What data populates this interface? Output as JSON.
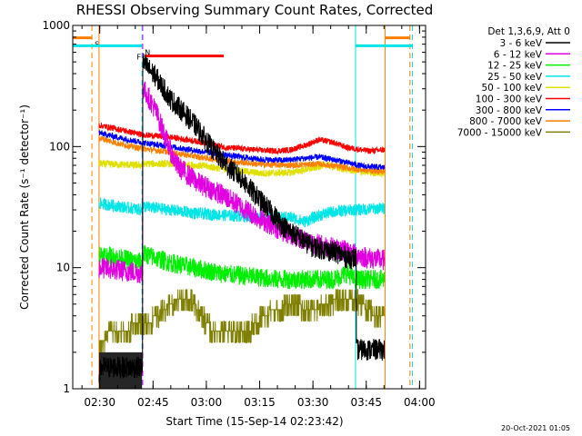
{
  "chart_data": {
    "type": "line",
    "title": "RHESSI Observing Summary Count Rates, Corrected",
    "xlabel": "Start Time (15-Sep-14 02:23:42)",
    "ylabel": "Corrected Count Rate (s⁻¹ detector⁻¹)",
    "footer_date": "20-Oct-2021 01:05",
    "x_unit": "minutes after 02:23:42",
    "xlim": [
      -1.3,
      98.0
    ],
    "ylim": [
      1,
      1000
    ],
    "y_scale": "log",
    "x_ticks": [
      {
        "label": "02:30",
        "t": 6.3
      },
      {
        "label": "02:45",
        "t": 21.3
      },
      {
        "label": "03:00",
        "t": 36.3
      },
      {
        "label": "03:15",
        "t": 51.3
      },
      {
        "label": "03:30",
        "t": 66.3
      },
      {
        "label": "03:45",
        "t": 81.3
      },
      {
        "label": "04:00",
        "t": 96.3
      }
    ],
    "y_ticks": [
      {
        "label": "1",
        "v": 1
      },
      {
        "label": "10",
        "v": 10
      },
      {
        "label": "100",
        "v": 100
      },
      {
        "label": "1000",
        "v": 1000
      }
    ],
    "legend_header": "Det 1,3,6,9, Att 0",
    "series": [
      {
        "name": "3 - 6 keV",
        "color": "#000000",
        "noise": 0.18,
        "points": [
          [
            6.1,
            1.3
          ],
          [
            6.7,
            1.5
          ],
          [
            12.5,
            1.5
          ],
          [
            18.2,
            1.5
          ],
          [
            18.6,
            490
          ],
          [
            22,
            380
          ],
          [
            26,
            250
          ],
          [
            30,
            190
          ],
          [
            34,
            140
          ],
          [
            38,
            95
          ],
          [
            42,
            70
          ],
          [
            46,
            55
          ],
          [
            50,
            40
          ],
          [
            54,
            30
          ],
          [
            58,
            22
          ],
          [
            62,
            18
          ],
          [
            66,
            15
          ],
          [
            70,
            14
          ],
          [
            74,
            13
          ],
          [
            76,
            12
          ],
          [
            78.3,
            12
          ],
          [
            78.7,
            2.1
          ],
          [
            86.5,
            2.1
          ]
        ]
      },
      {
        "name": "6 - 12 keV",
        "color": "#e000e0",
        "noise": 0.18,
        "points": [
          [
            6.1,
            10
          ],
          [
            12,
            9.5
          ],
          [
            18.2,
            9
          ],
          [
            18.6,
            300
          ],
          [
            22,
            200
          ],
          [
            26,
            95
          ],
          [
            28,
            70
          ],
          [
            30,
            62
          ],
          [
            34,
            50
          ],
          [
            38,
            44
          ],
          [
            42,
            38
          ],
          [
            46,
            32
          ],
          [
            50,
            27
          ],
          [
            54,
            23
          ],
          [
            58,
            20
          ],
          [
            62,
            18
          ],
          [
            66,
            16
          ],
          [
            70,
            15
          ],
          [
            74,
            14
          ],
          [
            78,
            13
          ],
          [
            82,
            12
          ],
          [
            86.5,
            11.5
          ]
        ]
      },
      {
        "name": "12 - 25 keV",
        "color": "#00ee00",
        "noise": 0.16,
        "points": [
          [
            6.1,
            13
          ],
          [
            18.2,
            11
          ],
          [
            18.6,
            13
          ],
          [
            26,
            11
          ],
          [
            40,
            9
          ],
          [
            56,
            8
          ],
          [
            66,
            8
          ],
          [
            72,
            8
          ],
          [
            76,
            9
          ],
          [
            78,
            8
          ],
          [
            86.5,
            8
          ]
        ]
      },
      {
        "name": "25 - 50 keV",
        "color": "#00e5e5",
        "noise": 0.1,
        "points": [
          [
            6.1,
            34
          ],
          [
            18.2,
            30
          ],
          [
            18.6,
            32
          ],
          [
            26,
            30
          ],
          [
            34,
            28
          ],
          [
            42,
            27
          ],
          [
            52,
            26
          ],
          [
            60,
            26
          ],
          [
            64,
            24
          ],
          [
            68,
            27
          ],
          [
            72,
            29
          ],
          [
            78,
            30
          ],
          [
            86.5,
            31
          ]
        ]
      },
      {
        "name": "50 - 100 keV",
        "color": "#e0e000",
        "noise": 0.06,
        "points": [
          [
            6.1,
            72
          ],
          [
            18.2,
            70
          ],
          [
            18.6,
            72
          ],
          [
            26,
            72
          ],
          [
            34,
            70
          ],
          [
            42,
            65
          ],
          [
            52,
            60
          ],
          [
            60,
            61
          ],
          [
            66,
            66
          ],
          [
            70,
            71
          ],
          [
            74,
            66
          ],
          [
            80,
            62
          ],
          [
            86.5,
            60
          ]
        ]
      },
      {
        "name": "100 - 300 keV",
        "color": "#ff0000",
        "noise": 0.05,
        "points": [
          [
            6.1,
            150
          ],
          [
            12,
            138
          ],
          [
            18.2,
            125
          ],
          [
            26,
            120
          ],
          [
            34,
            110
          ],
          [
            42,
            98
          ],
          [
            52,
            93
          ],
          [
            56,
            92
          ],
          [
            60,
            94
          ],
          [
            64,
            102
          ],
          [
            68,
            114
          ],
          [
            72,
            108
          ],
          [
            76,
            98
          ],
          [
            82,
            92
          ],
          [
            86.5,
            94
          ]
        ]
      },
      {
        "name": "300 - 800 keV",
        "color": "#0000ff",
        "noise": 0.05,
        "points": [
          [
            6.1,
            130
          ],
          [
            12,
            118
          ],
          [
            18.2,
            108
          ],
          [
            26,
            100
          ],
          [
            34,
            92
          ],
          [
            42,
            85
          ],
          [
            52,
            78
          ],
          [
            58,
            77
          ],
          [
            64,
            80
          ],
          [
            68,
            82
          ],
          [
            74,
            76
          ],
          [
            80,
            69
          ],
          [
            86.5,
            67
          ]
        ]
      },
      {
        "name": "800 - 7000 keV",
        "color": "#ff8000",
        "noise": 0.05,
        "points": [
          [
            6.1,
            118
          ],
          [
            12,
            105
          ],
          [
            18.2,
            96
          ],
          [
            26,
            90
          ],
          [
            34,
            82
          ],
          [
            42,
            76
          ],
          [
            52,
            71
          ],
          [
            60,
            70
          ],
          [
            68,
            72
          ],
          [
            74,
            68
          ],
          [
            80,
            64
          ],
          [
            86.5,
            62
          ]
        ]
      },
      {
        "name": "7000 - 15000 keV",
        "color": "#808000",
        "noise": 0.0,
        "points": [
          [
            6.1,
            2.6
          ],
          [
            18.2,
            3.5
          ],
          [
            20,
            3.5
          ],
          [
            24,
            4.5
          ],
          [
            28,
            5.5
          ],
          [
            32,
            5.5
          ],
          [
            34,
            4.5
          ],
          [
            38,
            3.0
          ],
          [
            42,
            3.0
          ],
          [
            48,
            3.0
          ],
          [
            52,
            4.0
          ],
          [
            56,
            4.5
          ],
          [
            60,
            5.0
          ],
          [
            66,
            4.5
          ],
          [
            70,
            5.0
          ],
          [
            74,
            5.5
          ],
          [
            78,
            5.5
          ],
          [
            80,
            5.0
          ],
          [
            84,
            4.0
          ],
          [
            86.5,
            3.8
          ]
        ]
      }
    ],
    "markers": {
      "vertical_lines": [
        {
          "t": 4.1,
          "color": "#ff8000",
          "style": "dashed"
        },
        {
          "t": 6.1,
          "color": "#ff8000",
          "style": "solid"
        },
        {
          "t": 18.2,
          "color": "#00e5e5",
          "style": "dashed"
        },
        {
          "t": 18.4,
          "color": "#ff00ff",
          "style": "dashed"
        },
        {
          "t": 78.3,
          "color": "#00e5e5",
          "style": "solid"
        },
        {
          "t": 86.6,
          "color": "#ff8000",
          "style": "solid"
        },
        {
          "t": 93.6,
          "color": "#ff8000",
          "style": "dashed"
        },
        {
          "t": 94.3,
          "color": "#00e5e5",
          "style": "dashed"
        }
      ],
      "bars": [
        {
          "label": "S",
          "color": "#ff8000",
          "segments": [
            [
              -1.3,
              4.1
            ],
            [
              86.6,
              93.6
            ]
          ],
          "y": 790
        },
        {
          "label": "N",
          "color": "#00e5e5",
          "segments": [
            [
              -1.3,
              18.2
            ],
            [
              78.3,
              94.3
            ]
          ],
          "y": 680
        },
        {
          "label": "F",
          "color": "#ff0000",
          "segments": [
            [
              19.0,
              41.2
            ]
          ],
          "y": 560
        }
      ]
    }
  }
}
